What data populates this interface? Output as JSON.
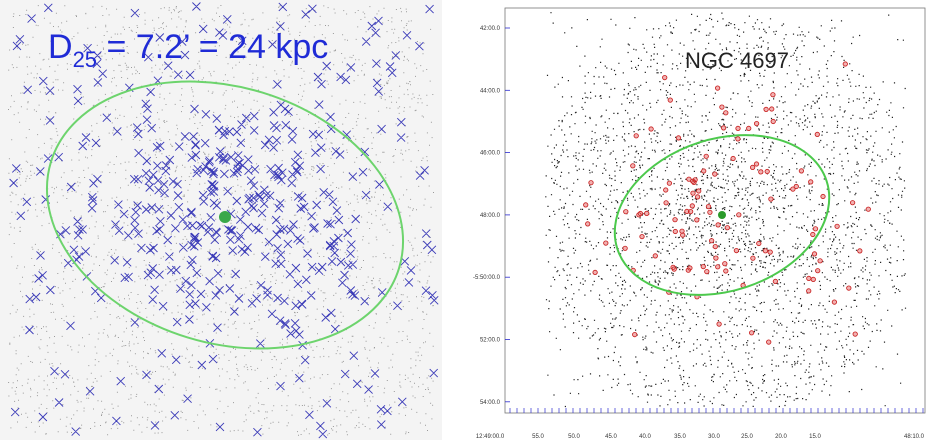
{
  "left_panel": {
    "label": {
      "main": "D",
      "subscript": "25",
      "rest": " = 7.2’ = 24 kpc"
    }
  },
  "right_panel": {
    "title": "NGC 4697",
    "y_labels": [
      "42:00.0",
      "44:00.0",
      "46:00.0",
      "48:00.0",
      "-5:50:00.0",
      "52:00.0",
      "54:00.0"
    ],
    "x_labels": [
      "12:49:00.0",
      "55.0",
      "50.0",
      "45.0",
      "40.0",
      "35.0",
      "30.0",
      "25.0",
      "20.0",
      "15.0",
      "48:10.0"
    ]
  }
}
